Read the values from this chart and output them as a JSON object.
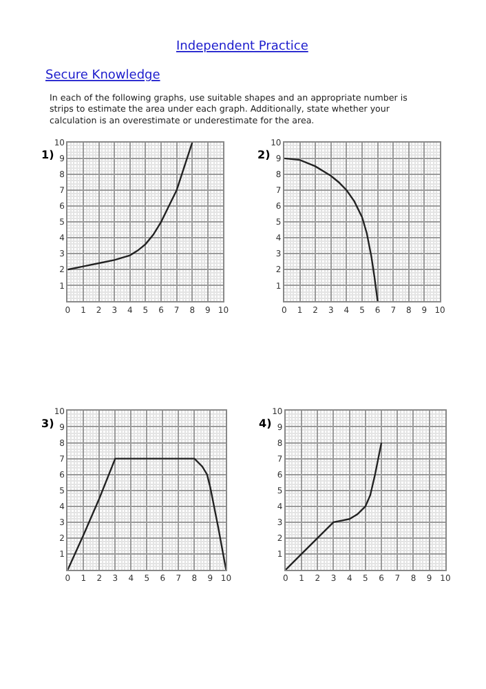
{
  "chart_data": [
    {
      "type": "line",
      "title": "1)",
      "annotations": [
        "Independent Practice",
        "Secure Knowledge",
        "In each of the following graphs, use suitable shapes and an appropriate number is strips to estimate the area under each graph. Additionally, state whether your calculation is an overestimate or underestimate for the area."
      ],
      "x": [
        0,
        1,
        2,
        3,
        4,
        4.5,
        5,
        5.5,
        6,
        6.5,
        7,
        7.5,
        8
      ],
      "series": [
        {
          "color": "#222222",
          "values": [
            2,
            2.2,
            2.4,
            2.6,
            2.9,
            3.2,
            3.6,
            4.2,
            5,
            6,
            7,
            8.5,
            10
          ]
        }
      ],
      "xlim": [
        0,
        10
      ],
      "ylim": [
        0,
        10
      ],
      "xticks": [
        0,
        1,
        2,
        3,
        4,
        5,
        6,
        7,
        8,
        9,
        10
      ],
      "yticks": [
        1,
        2,
        3,
        4,
        5,
        6,
        7,
        8,
        9,
        10
      ],
      "grid": true
    },
    {
      "type": "line",
      "title": "2)",
      "x": [
        0,
        1,
        2,
        3,
        3.5,
        4,
        4.5,
        5,
        5.3,
        5.6,
        5.8,
        6
      ],
      "series": [
        {
          "color": "#222222",
          "values": [
            9,
            8.9,
            8.5,
            7.9,
            7.5,
            7,
            6.3,
            5.3,
            4.3,
            2.8,
            1.5,
            0
          ]
        }
      ],
      "xlim": [
        0,
        10
      ],
      "ylim": [
        0,
        10
      ],
      "xticks": [
        0,
        1,
        2,
        3,
        4,
        5,
        6,
        7,
        8,
        9,
        10
      ],
      "yticks": [
        1,
        2,
        3,
        4,
        5,
        6,
        7,
        8,
        9,
        10
      ],
      "grid": true
    },
    {
      "type": "line",
      "title": "3)",
      "x": [
        0,
        1,
        2,
        3,
        8,
        8.5,
        8.8,
        9,
        9.5,
        10
      ],
      "series": [
        {
          "color": "#222222",
          "values": [
            0,
            2.2,
            4.5,
            7,
            7,
            6.5,
            6,
            5.2,
            2.7,
            0
          ]
        }
      ],
      "xlim": [
        0,
        10
      ],
      "ylim": [
        0,
        10
      ],
      "xticks": [
        0,
        1,
        2,
        3,
        4,
        5,
        6,
        7,
        8,
        9,
        10
      ],
      "yticks": [
        1,
        2,
        3,
        4,
        5,
        6,
        7,
        8,
        9,
        10
      ],
      "grid": true
    },
    {
      "type": "line",
      "title": "4)",
      "x": [
        0,
        1,
        2,
        3,
        3.5,
        4,
        4.5,
        5,
        5.3,
        5.6,
        5.8,
        6
      ],
      "series": [
        {
          "color": "#222222",
          "values": [
            0,
            1,
            2,
            3,
            3.1,
            3.2,
            3.5,
            4,
            4.7,
            6,
            7,
            8
          ]
        }
      ],
      "xlim": [
        0,
        10
      ],
      "ylim": [
        0,
        10
      ],
      "xticks": [
        0,
        1,
        2,
        3,
        4,
        5,
        6,
        7,
        8,
        9,
        10
      ],
      "yticks": [
        1,
        2,
        3,
        4,
        5,
        6,
        7,
        8,
        9,
        10
      ],
      "grid": true
    }
  ]
}
